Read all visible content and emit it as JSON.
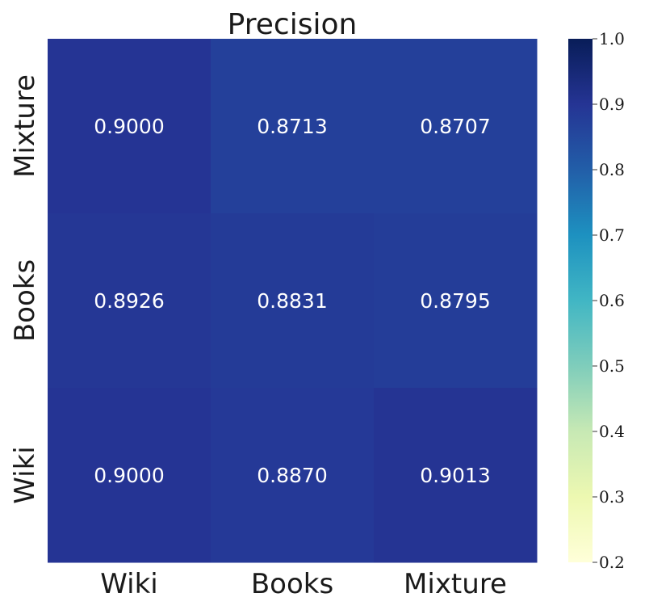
{
  "chart_data": {
    "type": "heatmap",
    "title": "Precision",
    "x_categories": [
      "Wiki",
      "Books",
      "Mixture"
    ],
    "y_categories": [
      "Mixture",
      "Books",
      "Wiki"
    ],
    "values": [
      [
        0.9,
        0.8713,
        0.8707
      ],
      [
        0.8926,
        0.8831,
        0.8795
      ],
      [
        0.9,
        0.887,
        0.9013
      ]
    ],
    "value_labels": [
      [
        "0.9000",
        "0.8713",
        "0.8707"
      ],
      [
        "0.8926",
        "0.8831",
        "0.8795"
      ],
      [
        "0.9000",
        "0.8870",
        "0.9013"
      ]
    ],
    "colorbar": {
      "min": 0.2,
      "max": 1.0,
      "ticks": [
        "0.2",
        "0.3",
        "0.4",
        "0.5",
        "0.6",
        "0.7",
        "0.8",
        "0.9",
        "1.0"
      ],
      "colormap": "YlGnBu"
    },
    "colors": {
      "cell_text": "#ffffff",
      "cmap_stops": [
        "#ffffd9",
        "#edf8b1",
        "#c7e9b4",
        "#7fcdbb",
        "#41b6c4",
        "#1d91c0",
        "#225ea8",
        "#253494",
        "#081d58"
      ]
    }
  }
}
